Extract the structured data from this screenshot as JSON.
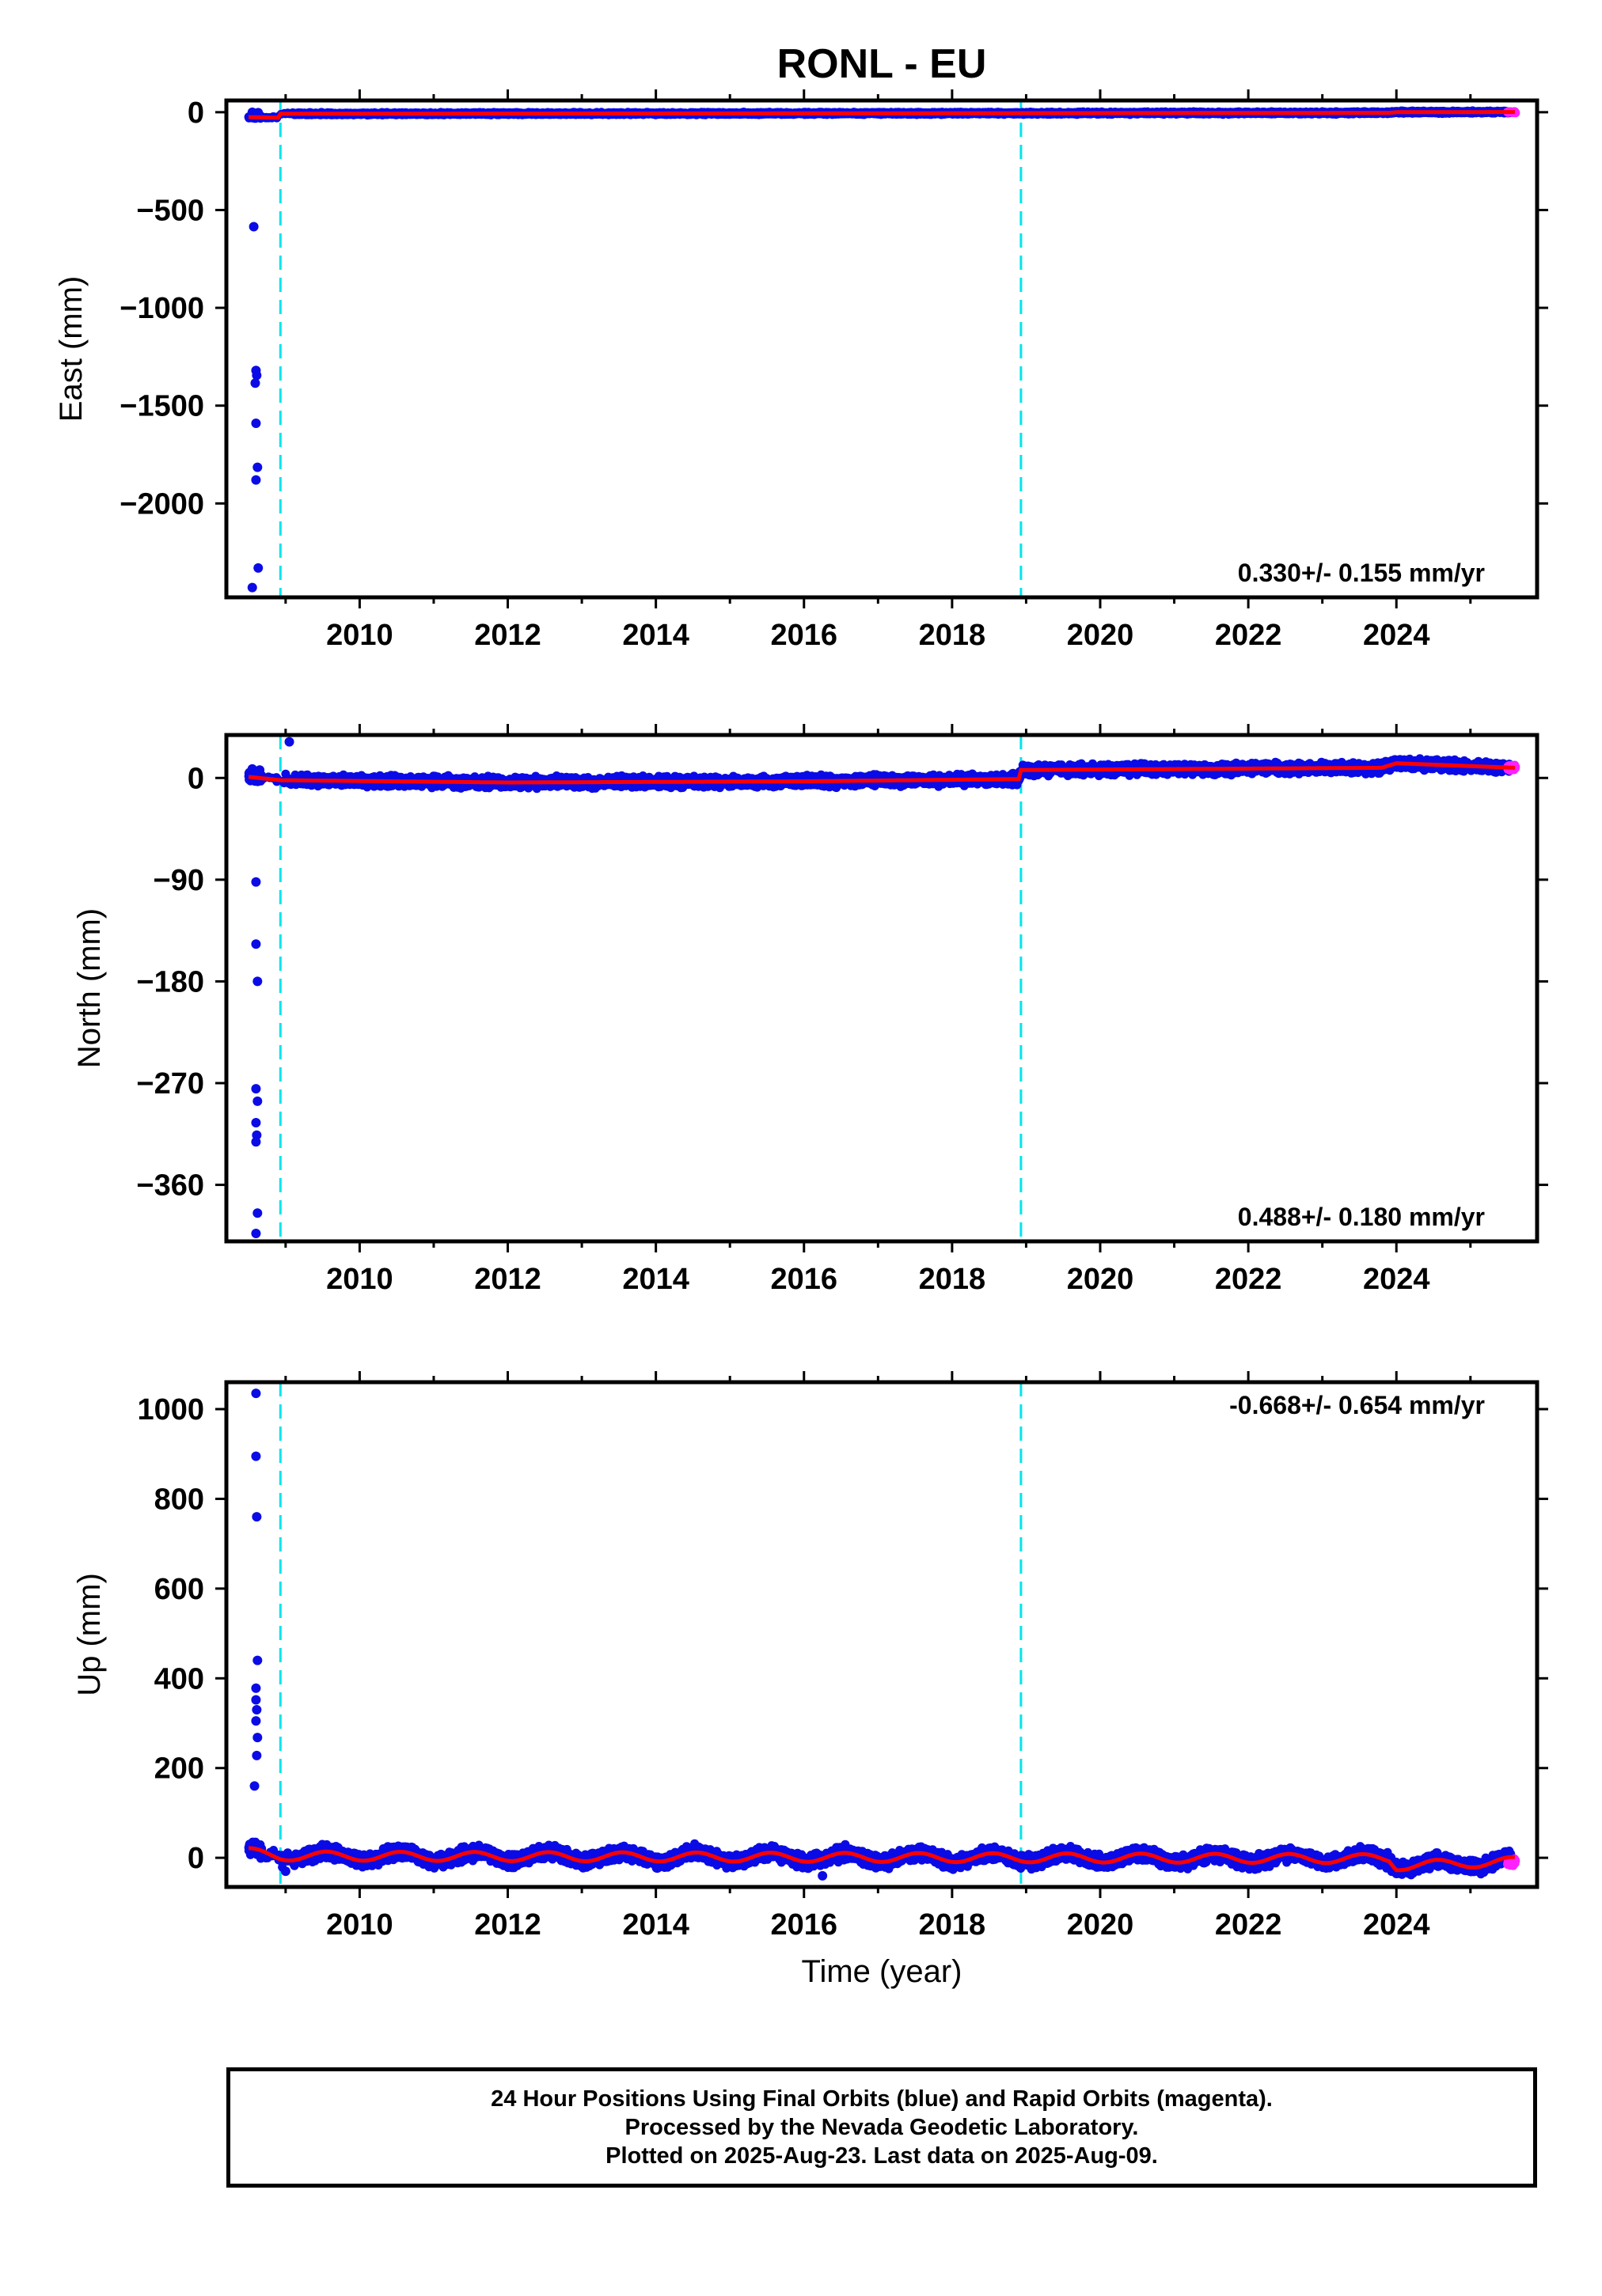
{
  "title": "RONL - EU",
  "colors": {
    "final_orbits": "#0b0be6",
    "rapid_orbits": "#ff20ff",
    "model": "#ff0000",
    "offsets": "#00e5ee"
  },
  "chart_data": [
    {
      "type": "scatter",
      "panel": "east",
      "ylabel": "East (mm)",
      "xlim": [
        2008.2,
        2025.9
      ],
      "ylim": [
        -2480,
        60
      ],
      "yticks": [
        0,
        -500,
        -1000,
        -1500,
        -2000
      ],
      "xticks": [
        2010,
        2012,
        2014,
        2016,
        2018,
        2020,
        2022,
        2024
      ],
      "rate_label": "0.330+/- 0.155 mm/yr",
      "offset_lines": [
        2008.93,
        2018.93
      ],
      "outliers": [
        {
          "x": 2008.55,
          "y": 0
        },
        {
          "x": 2008.58,
          "y": -5
        },
        {
          "x": 2008.63,
          "y": -2
        },
        {
          "x": 2008.57,
          "y": -585
        },
        {
          "x": 2008.6,
          "y": -1320
        },
        {
          "x": 2008.61,
          "y": -1345
        },
        {
          "x": 2008.59,
          "y": -1385
        },
        {
          "x": 2008.6,
          "y": -1590
        },
        {
          "x": 2008.62,
          "y": -1815
        },
        {
          "x": 2008.6,
          "y": -1880
        },
        {
          "x": 2008.63,
          "y": -2330
        },
        {
          "x": 2008.55,
          "y": -2430
        }
      ],
      "model": [
        {
          "x": 2008.5,
          "y": -25
        },
        {
          "x": 2008.9,
          "y": -28
        },
        {
          "x": 2008.93,
          "y": -8
        },
        {
          "x": 2016.0,
          "y": -6
        },
        {
          "x": 2023.9,
          "y": -3
        },
        {
          "x": 2024.0,
          "y": 0
        },
        {
          "x": 2025.6,
          "y": 1
        }
      ],
      "noise_mm": 4
    },
    {
      "type": "scatter",
      "panel": "north",
      "ylabel": "North (mm)",
      "xlim": [
        2008.2,
        2025.9
      ],
      "ylim": [
        -410,
        38
      ],
      "yticks": [
        0,
        -90,
        -180,
        -270,
        -360
      ],
      "xticks": [
        2010,
        2012,
        2014,
        2016,
        2018,
        2020,
        2022,
        2024
      ],
      "rate_label": "0.488+/- 0.180 mm/yr",
      "offset_lines": [
        2008.93,
        2018.93
      ],
      "outliers": [
        {
          "x": 2008.55,
          "y": 8
        },
        {
          "x": 2008.6,
          "y": 4
        },
        {
          "x": 2008.65,
          "y": 7
        },
        {
          "x": 2009.05,
          "y": 32
        },
        {
          "x": 2008.6,
          "y": -92
        },
        {
          "x": 2008.6,
          "y": -147
        },
        {
          "x": 2008.62,
          "y": -180
        },
        {
          "x": 2008.6,
          "y": -275
        },
        {
          "x": 2008.62,
          "y": -286
        },
        {
          "x": 2008.6,
          "y": -305
        },
        {
          "x": 2008.61,
          "y": -316
        },
        {
          "x": 2008.6,
          "y": -322
        },
        {
          "x": 2008.62,
          "y": -385
        },
        {
          "x": 2008.6,
          "y": -403
        }
      ],
      "model": [
        {
          "x": 2008.5,
          "y": 1
        },
        {
          "x": 2008.93,
          "y": -2
        },
        {
          "x": 2012.0,
          "y": -4
        },
        {
          "x": 2016.0,
          "y": -3
        },
        {
          "x": 2018.9,
          "y": -1
        },
        {
          "x": 2018.93,
          "y": 7
        },
        {
          "x": 2023.8,
          "y": 9
        },
        {
          "x": 2024.0,
          "y": 13
        },
        {
          "x": 2025.6,
          "y": 9
        }
      ],
      "noise_mm": 3
    },
    {
      "type": "scatter",
      "panel": "up",
      "ylabel": "Up (mm)",
      "xlabel": "Time (year)",
      "xlim": [
        2008.2,
        2025.9
      ],
      "ylim": [
        -65,
        1060
      ],
      "yticks": [
        0,
        200,
        400,
        600,
        800,
        1000
      ],
      "xticks": [
        2010,
        2012,
        2014,
        2016,
        2018,
        2020,
        2022,
        2024
      ],
      "rate_label": "-0.668+/- 0.654 mm/yr",
      "offset_lines": [
        2008.93,
        2018.93
      ],
      "outliers": [
        {
          "x": 2008.6,
          "y": 1035
        },
        {
          "x": 2008.6,
          "y": 895
        },
        {
          "x": 2008.61,
          "y": 760
        },
        {
          "x": 2008.62,
          "y": 440
        },
        {
          "x": 2008.6,
          "y": 378
        },
        {
          "x": 2008.6,
          "y": 352
        },
        {
          "x": 2008.61,
          "y": 330
        },
        {
          "x": 2008.6,
          "y": 305
        },
        {
          "x": 2008.62,
          "y": 268
        },
        {
          "x": 2008.61,
          "y": 228
        },
        {
          "x": 2008.58,
          "y": 160
        },
        {
          "x": 2009.0,
          "y": -30
        },
        {
          "x": 2016.25,
          "y": -40
        }
      ],
      "model": [
        {
          "x": 2008.5,
          "y": 12
        },
        {
          "x": 2008.93,
          "y": 4
        },
        {
          "x": 2018.9,
          "y": 0
        },
        {
          "x": 2023.9,
          "y": -2
        },
        {
          "x": 2024.0,
          "y": -18
        },
        {
          "x": 2025.6,
          "y": -8
        }
      ],
      "seasonal_amp_mm": 10,
      "noise_mm": 10
    }
  ],
  "footer": {
    "line1": "24 Hour Positions Using Final Orbits (blue) and Rapid Orbits (magenta).",
    "line2": "Processed by the Nevada Geodetic Laboratory.",
    "line3": "Plotted on 2025-Aug-23. Last data on 2025-Aug-09."
  }
}
